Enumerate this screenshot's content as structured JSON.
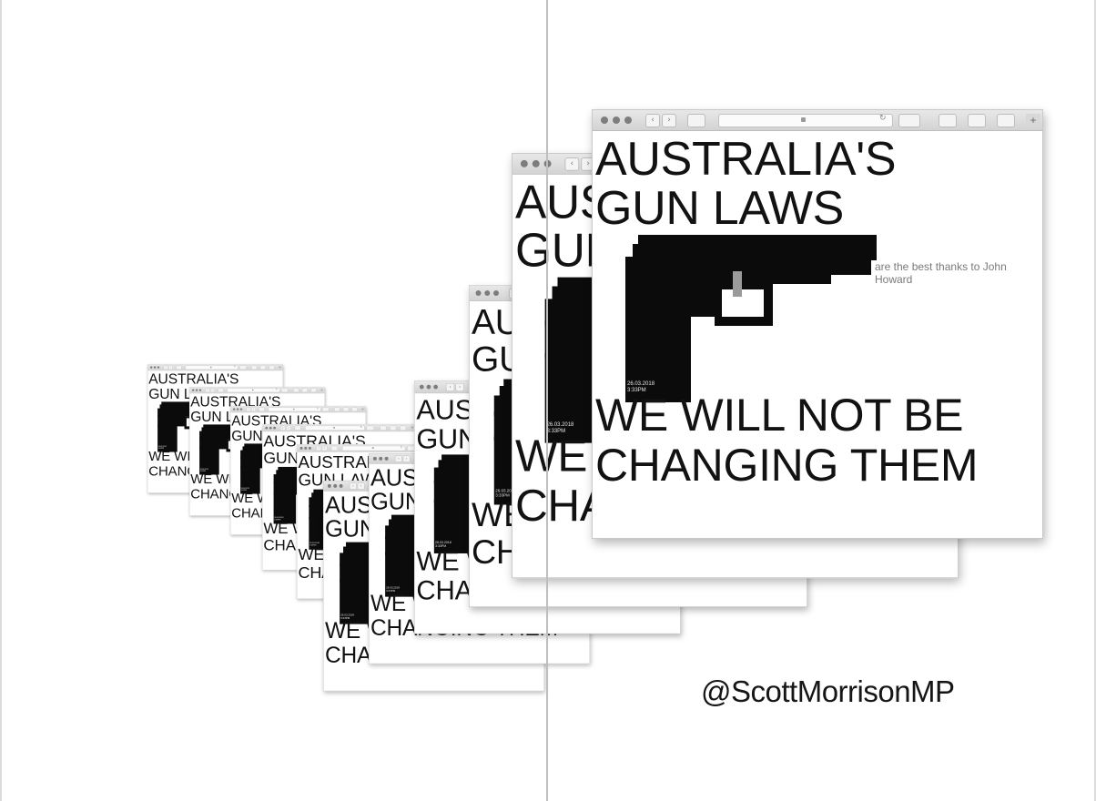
{
  "post": {
    "headline_line1": "AUSTRALIA'S",
    "headline_line2": "GUN LAWS",
    "caption": "are the best thanks to John Howard",
    "stamp_date": "26.03.2018",
    "stamp_time": "3:33PM",
    "closing_line1": "WE WILL NOT BE",
    "closing_line2": "CHANGING THEM",
    "author_handle": "@ScottMorrisonMP"
  },
  "browser": {
    "back_glyph": "‹",
    "forward_glyph": "›",
    "reload_glyph": "↻",
    "new_tab_glyph": "+"
  },
  "colors": {
    "gun": "#0b0b0b",
    "text": "#121212",
    "caption": "#7a7a7a",
    "toolbar": "#d8d8d8"
  },
  "icons": [
    "window-close-icon",
    "window-minimize-icon",
    "window-zoom-icon",
    "back-icon",
    "forward-icon",
    "sidebar-icon",
    "lock-icon",
    "reload-icon",
    "extension-icon",
    "download-icon",
    "share-icon",
    "tabs-icon",
    "new-tab-icon",
    "gun-icon"
  ]
}
